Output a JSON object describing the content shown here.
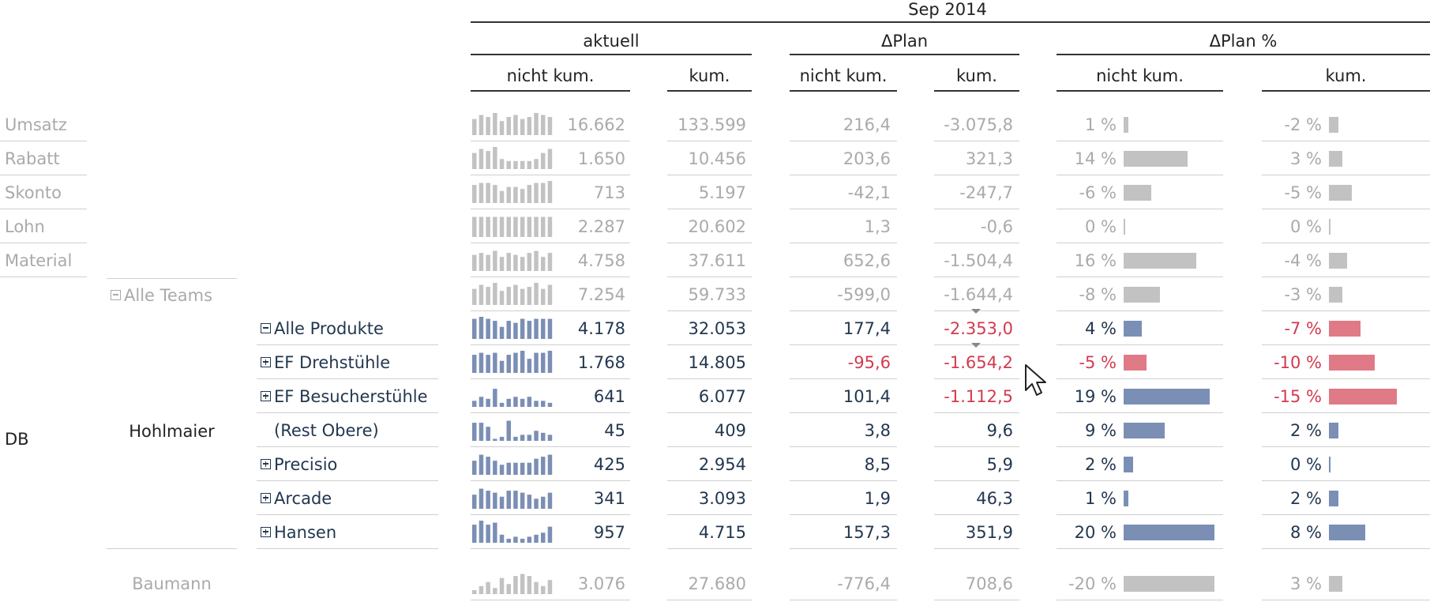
{
  "header": {
    "period": "Sep 2014",
    "groups": [
      "aktuell",
      "ΔPlan",
      "ΔPlan %"
    ],
    "sub": [
      "nicht kum.",
      "kum.",
      "nicht kum.",
      "kum.",
      "nicht kum.",
      "kum."
    ]
  },
  "colors": {
    "muted_text": "#aaaaaa",
    "normal_text": "#23374f",
    "negative_text": "#d23a4e",
    "bar_blue": "#7b8fb5",
    "bar_red": "#e07a86",
    "bar_gray": "#c2c2c2"
  },
  "left_labels": {
    "db": "DB",
    "alle_teams": "Alle Teams",
    "hohlmaier": "Hohlmaier",
    "baumann": "Baumann"
  },
  "rows": [
    {
      "label": "Umsatz",
      "level": 0,
      "style": "muted",
      "toggle": "",
      "value": "16.662",
      "cum": "133.599",
      "dplan": "216,4",
      "dplan_cum": "-3.075,8",
      "pct": "1 %",
      "pct_cum": "-2 %",
      "pct_val": 1,
      "pct_cum_val": -2,
      "spark": [
        8,
        10,
        9,
        11,
        7,
        9,
        10,
        8,
        9,
        11,
        10,
        9
      ]
    },
    {
      "label": "Rabatt",
      "level": 0,
      "style": "muted",
      "toggle": "",
      "value": "1.650",
      "cum": "10.456",
      "dplan": "203,6",
      "dplan_cum": "321,3",
      "pct": "14 %",
      "pct_cum": "3 %",
      "pct_val": 14,
      "pct_cum_val": 3,
      "spark": [
        8,
        10,
        9,
        11,
        5,
        4,
        4,
        4,
        4,
        5,
        8,
        10
      ]
    },
    {
      "label": "Skonto",
      "level": 0,
      "style": "muted",
      "toggle": "",
      "value": "713",
      "cum": "5.197",
      "dplan": "-42,1",
      "dplan_cum": "-247,7",
      "pct": "-6 %",
      "pct_cum": "-5 %",
      "pct_val": -6,
      "pct_cum_val": -5,
      "spark": [
        9,
        10,
        10,
        9,
        6,
        8,
        8,
        7,
        9,
        10,
        10,
        11
      ]
    },
    {
      "label": "Lohn",
      "level": 0,
      "style": "muted",
      "toggle": "",
      "value": "2.287",
      "cum": "20.602",
      "dplan": "1,3",
      "dplan_cum": "-0,6",
      "pct": "0 %",
      "pct_cum": "0 %",
      "pct_val": 0,
      "pct_cum_val": 0,
      "spark": [
        10,
        10,
        10,
        10,
        10,
        10,
        10,
        10,
        10,
        10,
        10,
        10
      ]
    },
    {
      "label": "Material",
      "level": 0,
      "style": "muted",
      "toggle": "",
      "value": "4.758",
      "cum": "37.611",
      "dplan": "652,6",
      "dplan_cum": "-1.504,4",
      "pct": "16 %",
      "pct_cum": "-4 %",
      "pct_val": 16,
      "pct_cum_val": -4,
      "spark": [
        8,
        9,
        8,
        10,
        7,
        9,
        8,
        7,
        9,
        10,
        7,
        9
      ]
    },
    {
      "label": "",
      "level": 1,
      "style": "muted",
      "toggle": "",
      "value": "7.254",
      "cum": "59.733",
      "dplan": "-599,0",
      "dplan_cum": "-1.644,4",
      "pct": "-8 %",
      "pct_cum": "-3 %",
      "pct_val": -8,
      "pct_cum_val": -3,
      "spark": [
        8,
        10,
        9,
        11,
        7,
        9,
        10,
        8,
        9,
        11,
        8,
        10
      ]
    },
    {
      "label": "Alle Produkte",
      "level": 2,
      "style": "normal",
      "toggle": "minus",
      "value": "4.178",
      "cum": "32.053",
      "dplan": "177,4",
      "dplan_cum": "-2.353,0",
      "pct": "4 %",
      "pct_cum": "-7 %",
      "pct_val": 4,
      "pct_cum_val": -7,
      "spark": [
        10,
        11,
        10,
        9,
        6,
        9,
        8,
        10,
        9,
        10,
        10,
        10
      ]
    },
    {
      "label": "EF Drehstühle",
      "level": 2,
      "style": "normal",
      "toggle": "plus",
      "value": "1.768",
      "cum": "14.805",
      "dplan": "-95,6",
      "dplan_cum": "-1.654,2",
      "pct": "-5 %",
      "pct_cum": "-10 %",
      "pct_val": -5,
      "pct_cum_val": -10,
      "spark": [
        9,
        10,
        9,
        10,
        6,
        9,
        10,
        11,
        7,
        10,
        10,
        11
      ]
    },
    {
      "label": "EF Besucherstühle",
      "level": 2,
      "style": "normal",
      "toggle": "plus",
      "value": "641",
      "cum": "6.077",
      "dplan": "101,4",
      "dplan_cum": "-1.112,5",
      "pct": "19 %",
      "pct_cum": "-15 %",
      "pct_val": 19,
      "pct_cum_val": -15,
      "spark": [
        3,
        5,
        4,
        9,
        2,
        4,
        5,
        4,
        5,
        3,
        3,
        2
      ]
    },
    {
      "label": "(Rest Obere)",
      "level": 2,
      "style": "normal",
      "toggle": "",
      "value": "45",
      "cum": "409",
      "dplan": "3,8",
      "dplan_cum": "9,6",
      "pct": "9 %",
      "pct_cum": "2 %",
      "pct_val": 9,
      "pct_cum_val": 2,
      "spark": [
        9,
        9,
        7,
        1,
        2,
        10,
        2,
        3,
        3,
        5,
        4,
        3
      ]
    },
    {
      "label": "Precisio",
      "level": 2,
      "style": "normal",
      "toggle": "plus",
      "value": "425",
      "cum": "2.954",
      "dplan": "8,5",
      "dplan_cum": "5,9",
      "pct": "2 %",
      "pct_cum": "0 %",
      "pct_val": 2,
      "pct_cum_val": 0,
      "spark": [
        7,
        10,
        9,
        7,
        5,
        6,
        6,
        6,
        6,
        8,
        9,
        10
      ]
    },
    {
      "label": "Arcade",
      "level": 2,
      "style": "normal",
      "toggle": "plus",
      "value": "341",
      "cum": "3.093",
      "dplan": "1,9",
      "dplan_cum": "46,3",
      "pct": "1 %",
      "pct_cum": "2 %",
      "pct_val": 1,
      "pct_cum_val": 2,
      "spark": [
        7,
        10,
        9,
        8,
        6,
        9,
        9,
        8,
        7,
        5,
        6,
        8
      ]
    },
    {
      "label": "Hansen",
      "level": 2,
      "style": "normal",
      "toggle": "plus",
      "value": "957",
      "cum": "4.715",
      "dplan": "157,3",
      "dplan_cum": "351,9",
      "pct": "20 %",
      "pct_cum": "8 %",
      "pct_val": 20,
      "pct_cum_val": 8,
      "spark": [
        9,
        11,
        9,
        10,
        4,
        2,
        3,
        2,
        3,
        4,
        5,
        8
      ]
    },
    {
      "label": "",
      "level": 1,
      "style": "muted",
      "toggle": "",
      "value": "3.076",
      "cum": "27.680",
      "dplan": "-776,4",
      "dplan_cum": "708,6",
      "pct": "-20 %",
      "pct_cum": "3 %",
      "pct_val": -20,
      "pct_cum_val": 3,
      "spark": [
        2,
        4,
        6,
        3,
        8,
        5,
        9,
        10,
        9,
        6,
        4,
        7
      ]
    }
  ]
}
